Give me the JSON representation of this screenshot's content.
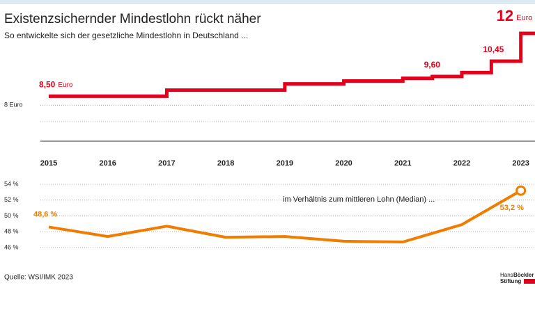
{
  "chart_data": [
    {
      "type": "step",
      "title": "Existenzsichernder Mindestlohn rückt näher",
      "subtitle": "So entwickelte sich der gesetzliche Mindestlohn in Deutschland ...",
      "x": [
        2015,
        2017,
        2019,
        2020,
        2021,
        2021.5,
        2022,
        2022.5,
        2023
      ],
      "values": [
        8.5,
        8.84,
        9.19,
        9.35,
        9.5,
        9.6,
        9.82,
        10.45,
        12
      ],
      "value_labels": [
        "8,50",
        null,
        null,
        null,
        null,
        "9,60",
        null,
        "10,45",
        "12"
      ],
      "unit": "Euro",
      "color": "#e2001a",
      "xlim": [
        2015,
        2023.24
      ],
      "xticks": [
        2015,
        2016,
        2017,
        2018,
        2019,
        2020,
        2021,
        2022,
        2023
      ],
      "ylim": [
        6,
        12
      ],
      "yticks": [
        {
          "value": 8,
          "label": "8 Euro"
        }
      ],
      "grid": true
    },
    {
      "type": "line",
      "annotation": "im Verhältnis zum mittleren Lohn (Median) ...",
      "x": [
        2015,
        2016,
        2017,
        2018,
        2019,
        2020,
        2021,
        2022,
        2023
      ],
      "values": [
        48.6,
        47.4,
        48.7,
        47.3,
        47.4,
        46.8,
        46.7,
        48.9,
        53.2
      ],
      "value_labels": [
        "48,6 %",
        null,
        null,
        null,
        null,
        null,
        null,
        null,
        "53,2 %"
      ],
      "color": "#f07d00",
      "xlim": [
        2015,
        2023.24
      ],
      "ylim": [
        46,
        54
      ],
      "yticks": [
        {
          "value": 46,
          "label": "46 %"
        },
        {
          "value": 48,
          "label": "48 %"
        },
        {
          "value": 50,
          "label": "50 %"
        },
        {
          "value": 52,
          "label": "52 %"
        },
        {
          "value": 54,
          "label": "54 %"
        }
      ],
      "grid": true
    }
  ],
  "source": "Quelle: WSI/IMK 2023",
  "logo": {
    "line1": "Hans",
    "line2": "Böckler",
    "line3": "Stiftung"
  }
}
